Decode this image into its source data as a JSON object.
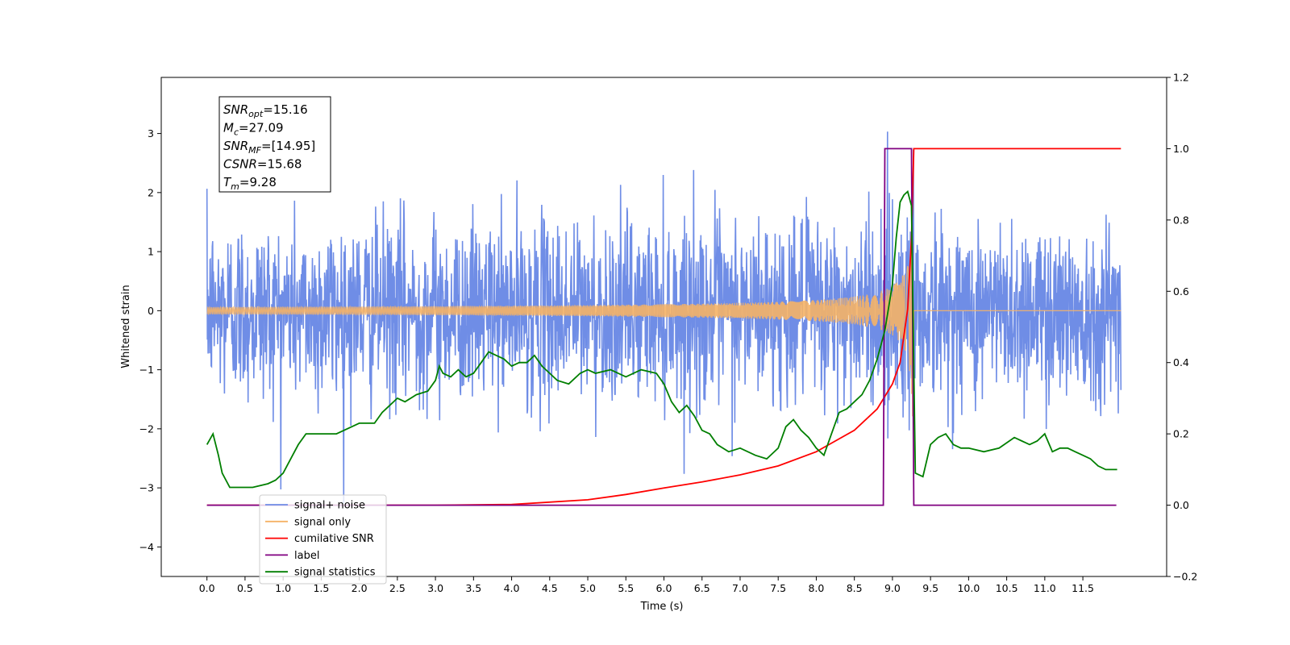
{
  "chart_data": {
    "type": "line",
    "xlabel": "Time (s)",
    "ylabel": "Whitened strain",
    "xlim": [
      -0.6,
      12.6
    ],
    "ylim": [
      -4.5,
      3.95
    ],
    "y2lim": [
      -0.2,
      1.2
    ],
    "x_ticks": [
      0.0,
      0.5,
      1.0,
      1.5,
      2.0,
      2.5,
      3.0,
      3.5,
      4.0,
      4.5,
      5.0,
      5.5,
      6.0,
      6.5,
      7.0,
      7.5,
      8.0,
      8.5,
      9.0,
      9.5,
      10.0,
      10.5,
      11.0,
      11.5
    ],
    "x_tick_labels": [
      "0.0",
      "0.5",
      "1.0",
      "1.5",
      "2.0",
      "2.5",
      "3.0",
      "3.5",
      "4.0",
      "4.5",
      "5.0",
      "5.5",
      "6.0",
      "6.5",
      "7.0",
      "7.5",
      "8.0",
      "8.5",
      "9.0",
      "9.5",
      "10.0",
      "10.5",
      "11.0",
      "11.5"
    ],
    "y_ticks": [
      -4,
      -3,
      -2,
      -1,
      0,
      1,
      2,
      3
    ],
    "y_tick_labels": [
      "−4",
      "−3",
      "−2",
      "−1",
      "0",
      "1",
      "2",
      "3"
    ],
    "y2_ticks": [
      -0.2,
      0.0,
      0.2,
      0.4,
      0.6,
      0.8,
      1.0,
      1.2
    ],
    "y2_tick_labels": [
      "−0.2",
      "0.0",
      "0.2",
      "0.4",
      "0.6",
      "0.8",
      "1.0",
      "1.2"
    ],
    "grid": false,
    "legend_position": "lower-left",
    "legend": [
      "signal+ noise",
      "signal only",
      "cumilative SNR",
      "label",
      "signal statistics"
    ],
    "annotation": [
      {
        "base": "SNR",
        "sub": "opt",
        "rest": "=15.16"
      },
      {
        "base": "M",
        "sub": "c",
        "rest": "=27.09"
      },
      {
        "base": "SNR",
        "sub": "MF",
        "rest": "=[14.95]"
      },
      {
        "base": "CSNR",
        "sub": "",
        "rest": "=15.68"
      },
      {
        "base": "T",
        "sub": "m",
        "rest": "=9.28"
      }
    ],
    "series": [
      {
        "name": "signal+ noise",
        "axis": "left",
        "color": "#6f8de6",
        "x_range": [
          0.0,
          12.0
        ],
        "noise_std": 0.75,
        "y_min": -4.1,
        "y_max": 3.6
      },
      {
        "name": "signal only",
        "axis": "left",
        "color": "#f5b266",
        "x_range": [
          0.0,
          12.0
        ],
        "chirp_end_time": 9.28,
        "peak_amplitude": 1.8
      },
      {
        "name": "cumilative SNR",
        "axis": "right",
        "color": "#ff0000",
        "x": [
          0.0,
          3.0,
          4.0,
          5.0,
          5.5,
          6.0,
          6.5,
          7.0,
          7.5,
          8.0,
          8.5,
          8.8,
          9.0,
          9.1,
          9.2,
          9.25,
          9.28,
          12.0
        ],
        "y": [
          0.0,
          0.0,
          0.002,
          0.015,
          0.03,
          0.048,
          0.065,
          0.085,
          0.11,
          0.15,
          0.21,
          0.27,
          0.34,
          0.4,
          0.55,
          0.75,
          1.0,
          1.0
        ]
      },
      {
        "name": "label",
        "axis": "right",
        "color": "#800080",
        "x": [
          0.0,
          8.88,
          8.9,
          9.25,
          9.28,
          11.94
        ],
        "y": [
          0.0,
          0.0,
          1.0,
          1.0,
          0.0,
          0.0
        ]
      },
      {
        "name": "signal statistics",
        "axis": "right",
        "color": "#007f00",
        "x": [
          0.0,
          0.08,
          0.15,
          0.2,
          0.3,
          0.45,
          0.6,
          0.8,
          0.9,
          1.0,
          1.1,
          1.2,
          1.3,
          1.4,
          1.5,
          1.7,
          1.9,
          2.0,
          2.1,
          2.2,
          2.3,
          2.4,
          2.5,
          2.6,
          2.75,
          2.9,
          3.0,
          3.05,
          3.1,
          3.2,
          3.3,
          3.4,
          3.5,
          3.6,
          3.7,
          3.8,
          3.9,
          4.0,
          4.1,
          4.2,
          4.3,
          4.4,
          4.5,
          4.6,
          4.75,
          4.9,
          5.0,
          5.1,
          5.3,
          5.5,
          5.7,
          5.9,
          6.0,
          6.1,
          6.2,
          6.3,
          6.4,
          6.5,
          6.6,
          6.7,
          6.85,
          7.0,
          7.2,
          7.35,
          7.5,
          7.6,
          7.7,
          7.8,
          7.9,
          8.0,
          8.1,
          8.2,
          8.3,
          8.4,
          8.5,
          8.6,
          8.7,
          8.8,
          8.9,
          9.0,
          9.05,
          9.1,
          9.15,
          9.2,
          9.25,
          9.3,
          9.4,
          9.5,
          9.6,
          9.7,
          9.8,
          9.9,
          10.0,
          10.2,
          10.4,
          10.6,
          10.7,
          10.8,
          10.9,
          11.0,
          11.1,
          11.2,
          11.3,
          11.4,
          11.5,
          11.6,
          11.7,
          11.8,
          11.95
        ],
        "y": [
          0.17,
          0.2,
          0.14,
          0.09,
          0.05,
          0.05,
          0.05,
          0.06,
          0.07,
          0.09,
          0.13,
          0.17,
          0.2,
          0.2,
          0.2,
          0.2,
          0.22,
          0.23,
          0.23,
          0.23,
          0.26,
          0.28,
          0.3,
          0.29,
          0.31,
          0.32,
          0.35,
          0.39,
          0.37,
          0.36,
          0.38,
          0.36,
          0.37,
          0.4,
          0.43,
          0.42,
          0.41,
          0.39,
          0.4,
          0.4,
          0.42,
          0.39,
          0.37,
          0.35,
          0.34,
          0.37,
          0.38,
          0.37,
          0.38,
          0.36,
          0.38,
          0.37,
          0.34,
          0.29,
          0.26,
          0.28,
          0.25,
          0.21,
          0.2,
          0.17,
          0.15,
          0.16,
          0.14,
          0.13,
          0.16,
          0.22,
          0.24,
          0.21,
          0.19,
          0.16,
          0.14,
          0.2,
          0.26,
          0.27,
          0.29,
          0.31,
          0.35,
          0.41,
          0.49,
          0.62,
          0.75,
          0.85,
          0.87,
          0.88,
          0.84,
          0.09,
          0.08,
          0.17,
          0.19,
          0.2,
          0.17,
          0.16,
          0.16,
          0.15,
          0.16,
          0.19,
          0.18,
          0.17,
          0.18,
          0.2,
          0.15,
          0.16,
          0.16,
          0.15,
          0.14,
          0.13,
          0.11,
          0.1,
          0.1
        ]
      }
    ]
  }
}
